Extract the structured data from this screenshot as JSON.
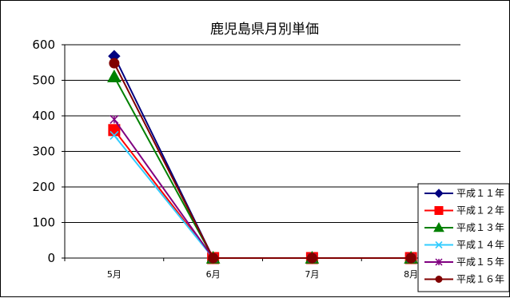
{
  "chart_data": {
    "type": "line",
    "title": "鹿児島県月別単価",
    "xlabel": "",
    "ylabel": "",
    "categories": [
      "5月",
      "6月",
      "7月",
      "8月"
    ],
    "ylim": [
      0,
      600
    ],
    "yticks": [
      0,
      100,
      200,
      300,
      400,
      500,
      600
    ],
    "grid": true,
    "legend": "bottom-right",
    "series": [
      {
        "name": "平成11年",
        "label": "平成１１年",
        "values": [
          568,
          0,
          0,
          0
        ],
        "color": "#000080",
        "marker": "diamond"
      },
      {
        "name": "平成12年",
        "label": "平成１２年",
        "values": [
          360,
          0,
          0,
          0
        ],
        "color": "#ff0000",
        "marker": "square"
      },
      {
        "name": "平成13年",
        "label": "平成１３年",
        "values": [
          510,
          0,
          0,
          0
        ],
        "color": "#008000",
        "marker": "triangle"
      },
      {
        "name": "平成14年",
        "label": "平成１４年",
        "values": [
          345,
          0,
          0,
          0
        ],
        "color": "#33ccff",
        "marker": "x"
      },
      {
        "name": "平成15年",
        "label": "平成１５年",
        "values": [
          390,
          0,
          0,
          0
        ],
        "color": "#800080",
        "marker": "star"
      },
      {
        "name": "平成16年",
        "label": "平成１６年",
        "values": [
          548,
          0,
          0,
          0
        ],
        "color": "#800000",
        "marker": "circle"
      }
    ]
  }
}
